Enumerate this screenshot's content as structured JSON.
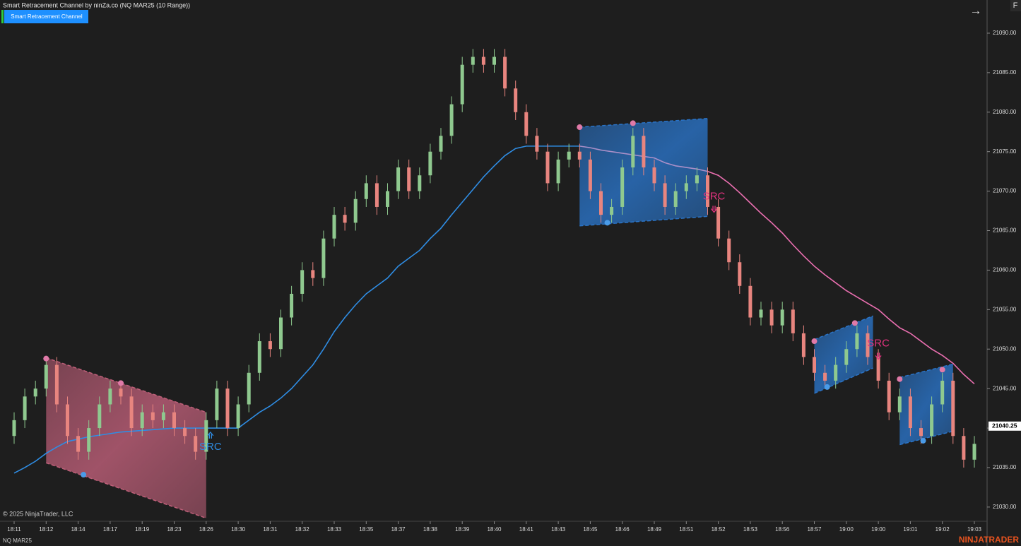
{
  "chart_data": {
    "type": "candlestick",
    "title": "Smart Retracement Channel by ninZa.co (NQ MAR25 (10 Range))",
    "indicator_button": "Smart Retracement Channel",
    "menu_letter": "F",
    "nav_arrow": "→",
    "copyright": "© 2025 NinjaTrader, LLC",
    "instrument": "NQ MAR25",
    "brand": "NINJATRADER",
    "up_color": "#8fc98f",
    "down_color": "#e8857f",
    "ylim": [
      21028.2,
      21094.2
    ],
    "yticks": [
      {
        "value": 21030,
        "label": "21030.00"
      },
      {
        "value": 21035,
        "label": "21035.00"
      },
      {
        "value": 21040,
        "label": "21040.00"
      },
      {
        "value": 21045,
        "label": "21045.00"
      },
      {
        "value": 21050,
        "label": "21050.00"
      },
      {
        "value": 21055,
        "label": "21055.00"
      },
      {
        "value": 21060,
        "label": "21060.00"
      },
      {
        "value": 21065,
        "label": "21065.00"
      },
      {
        "value": 21070,
        "label": "21070.00"
      },
      {
        "value": 21075,
        "label": "21075.00"
      },
      {
        "value": 21080,
        "label": "21080.00"
      },
      {
        "value": 21085,
        "label": "21085.00"
      },
      {
        "value": 21090,
        "label": "21090.00"
      }
    ],
    "last_price": 21040.25,
    "categories": [
      "18:11",
      null,
      null,
      "18:12",
      null,
      null,
      "18:14",
      null,
      null,
      "18:17",
      null,
      null,
      "18:19",
      null,
      null,
      "18:23",
      null,
      null,
      "18:26",
      null,
      null,
      "18:30",
      null,
      null,
      "18:31",
      null,
      null,
      "18:32",
      null,
      null,
      "18:33",
      null,
      null,
      "18:35",
      null,
      null,
      "18:37",
      null,
      null,
      "18:38",
      null,
      null,
      "18:39",
      null,
      null,
      "18:40",
      null,
      null,
      "18:41",
      null,
      null,
      "18:43",
      null,
      null,
      "18:45",
      null,
      null,
      "18:46",
      null,
      null,
      "18:49",
      null,
      null,
      "18:51",
      null,
      null,
      "18:52",
      null,
      null,
      "18:53",
      null,
      null,
      "18:56",
      null,
      null,
      "18:57",
      null,
      null,
      "19:00",
      null,
      null,
      "19:00",
      null,
      null,
      "19:01",
      null,
      null,
      "19:02",
      null,
      null,
      "19:03"
    ],
    "open": [
      21039,
      21041,
      21044,
      21045,
      21048,
      21043,
      21039,
      21037,
      21040,
      21043,
      21045,
      21044,
      21040,
      21042,
      21041,
      21042,
      21040,
      21039,
      21037,
      21041,
      21045,
      21040,
      21043,
      21047,
      21051,
      21050,
      21054,
      21057,
      21060,
      21059,
      21064,
      21067,
      21066,
      21069,
      21071,
      21068,
      21070,
      21073,
      21070,
      21072,
      21075,
      21077,
      21081,
      21086,
      21087,
      21086,
      21087,
      21083,
      21080,
      21077,
      21075,
      21071,
      21074,
      21075,
      21074,
      21070,
      21067,
      21068,
      21073,
      21077,
      21073,
      21071,
      21068,
      21070,
      21071,
      21072,
      21068,
      21064,
      21061,
      21058,
      21054,
      21055,
      21053,
      21055,
      21052,
      21049,
      21047,
      21046,
      21048,
      21050,
      21052,
      21049,
      21046,
      21042,
      21044,
      21040,
      21039,
      21043,
      21046,
      21039,
      21036
    ],
    "high": [
      21042,
      21045,
      21046,
      21049,
      21049,
      21044,
      21040,
      21041,
      21044,
      21046,
      21046,
      21045,
      21043,
      21043,
      21043,
      21043,
      21041,
      21040,
      21042,
      21046,
      21046,
      21044,
      21048,
      21052,
      21052,
      21055,
      21058,
      21061,
      21061,
      21065,
      21068,
      21068,
      21070,
      21072,
      21072,
      21071,
      21074,
      21074,
      21073,
      21076,
      21078,
      21082,
      21087,
      21088,
      21088,
      21088,
      21088,
      21084,
      21081,
      21078,
      21076,
      21075,
      21076,
      21076,
      21075,
      21071,
      21069,
      21074,
      21078,
      21078,
      21074,
      21072,
      21071,
      21072,
      21073,
      21073,
      21069,
      21065,
      21062,
      21059,
      21056,
      21056,
      21056,
      21056,
      21053,
      21050,
      21048,
      21049,
      21051,
      21053,
      21053,
      21050,
      21047,
      21045,
      21045,
      21041,
      21044,
      21047,
      21047,
      21040,
      21039
    ],
    "low": [
      21038,
      21040,
      21043,
      21044,
      21042,
      21038,
      21036,
      21036,
      21039,
      21042,
      21043,
      21039,
      21039,
      21040,
      21040,
      21039,
      21038,
      21036,
      21036,
      21040,
      21039,
      21039,
      21042,
      21046,
      21049,
      21049,
      21053,
      21056,
      21058,
      21058,
      21063,
      21065,
      21065,
      21068,
      21067,
      21067,
      21069,
      21069,
      21069,
      21071,
      21074,
      21076,
      21080,
      21085,
      21085,
      21085,
      21082,
      21079,
      21076,
      21074,
      21070,
      21070,
      21073,
      21073,
      21069,
      21066,
      21066,
      21067,
      21072,
      21072,
      21070,
      21067,
      21067,
      21069,
      21070,
      21067,
      21063,
      21060,
      21057,
      21053,
      21053,
      21052,
      21052,
      21051,
      21048,
      21046,
      21045,
      21045,
      21047,
      21049,
      21048,
      21045,
      21041,
      21041,
      21039,
      21038,
      21038,
      21042,
      21038,
      21035,
      21035
    ],
    "close": [
      21041,
      21044,
      21045,
      21048,
      21043,
      21039,
      21037,
      21040,
      21043,
      21045,
      21044,
      21040,
      21042,
      21041,
      21042,
      21040,
      21039,
      21037,
      21041,
      21045,
      21040,
      21043,
      21047,
      21051,
      21050,
      21054,
      21057,
      21060,
      21059,
      21064,
      21067,
      21066,
      21069,
      21071,
      21068,
      21070,
      21073,
      21070,
      21072,
      21075,
      21077,
      21081,
      21086,
      21087,
      21086,
      21087,
      21083,
      21080,
      21077,
      21075,
      21071,
      21074,
      21075,
      21074,
      21070,
      21067,
      21068,
      21073,
      21077,
      21073,
      21071,
      21068,
      21070,
      21071,
      21072,
      21068,
      21064,
      21061,
      21058,
      21054,
      21055,
      21053,
      21055,
      21052,
      21049,
      21047,
      21046,
      21048,
      21050,
      21052,
      21049,
      21046,
      21042,
      21044,
      21040,
      21039,
      21043,
      21046,
      21039,
      21036,
      21038
    ],
    "series": [
      {
        "color": "#2f8de4",
        "values": [
          21034.3,
          21035.0,
          21035.8,
          21036.8,
          21037.6,
          21038.3,
          21038.6,
          21038.9,
          21039.1,
          21039.3,
          21039.5,
          21039.6,
          21039.7,
          21039.8,
          21039.9,
          21040.0,
          21040.0,
          21040.0,
          21040.0,
          21040.0,
          21040.0,
          21040.0,
          21041.0,
          21042.0,
          21042.8,
          21043.8,
          21045.0,
          21046.5,
          21048.0,
          21050.0,
          21052.2,
          21054.0,
          21055.6,
          21057.0,
          21058.0,
          21059.0,
          21060.5,
          21061.5,
          21062.5,
          21064.0,
          21065.3,
          21067.0,
          21068.6,
          21070.2,
          21071.8,
          21073.2,
          21074.5,
          21075.4,
          21075.7,
          21075.7,
          21075.7,
          21075.7,
          21075.7,
          21075.7,
          null,
          null,
          null,
          null,
          null,
          null,
          null,
          null,
          null,
          null,
          null,
          null,
          null,
          null,
          null,
          null,
          null,
          null,
          null,
          null,
          null,
          null,
          null,
          null,
          null,
          null,
          null,
          null,
          null,
          null,
          null,
          null,
          null,
          null,
          null,
          null,
          null
        ]
      },
      {
        "color": "#a98fc8",
        "values": [
          null,
          null,
          null,
          null,
          null,
          null,
          null,
          null,
          null,
          null,
          null,
          null,
          null,
          null,
          null,
          null,
          null,
          null,
          null,
          null,
          null,
          null,
          null,
          null,
          null,
          null,
          null,
          null,
          null,
          null,
          null,
          null,
          null,
          null,
          null,
          null,
          null,
          null,
          null,
          null,
          null,
          null,
          null,
          null,
          null,
          null,
          null,
          null,
          null,
          null,
          null,
          null,
          null,
          21075.7,
          21075.5,
          21075.2,
          21075.0,
          21074.8,
          21074.6,
          21074.4,
          21074.2,
          21073.6,
          21073.2,
          21073.0,
          21072.8,
          21072.5,
          null,
          null,
          null,
          null,
          null,
          null,
          null,
          null,
          null,
          null,
          null,
          null,
          null,
          null,
          null,
          null,
          null,
          null,
          null,
          null,
          null,
          null,
          null,
          null,
          null
        ]
      },
      {
        "color": "#ea6fb0",
        "values": [
          null,
          null,
          null,
          null,
          null,
          null,
          null,
          null,
          null,
          null,
          null,
          null,
          null,
          null,
          null,
          null,
          null,
          null,
          null,
          null,
          null,
          null,
          null,
          null,
          null,
          null,
          null,
          null,
          null,
          null,
          null,
          null,
          null,
          null,
          null,
          null,
          null,
          null,
          null,
          null,
          null,
          null,
          null,
          null,
          null,
          null,
          null,
          null,
          null,
          null,
          null,
          null,
          null,
          null,
          null,
          null,
          null,
          null,
          null,
          null,
          null,
          null,
          null,
          null,
          null,
          21072.5,
          21072.0,
          21071.0,
          21069.8,
          21068.5,
          21067.2,
          21066.0,
          21064.7,
          21063.2,
          21061.8,
          21060.5,
          21059.4,
          21058.4,
          21057.4,
          21056.6,
          21055.8,
          21055.0,
          21053.8,
          21052.7,
          21052.0,
          21051.0,
          21050.0,
          21049.2,
          21048.2,
          21046.8,
          21045.6
        ]
      }
    ],
    "channels": [
      {
        "start": 3,
        "end": 18,
        "top": [
          21048.9,
          21042.0
        ],
        "bottom": [
          21035.6,
          21028.6
        ],
        "color": "#c0607a"
      },
      {
        "start": 53,
        "end": 65,
        "top": [
          21078.1,
          21079.2
        ],
        "bottom": [
          21065.6,
          21066.8
        ],
        "color": "#2a74c8"
      },
      {
        "start": 75,
        "end": 80.5,
        "top": [
          21051.2,
          21054.2
        ],
        "bottom": [
          21044.4,
          21047.6
        ],
        "color": "#2a74c8"
      },
      {
        "start": 83,
        "end": 88,
        "top": [
          21046.4,
          21048.1
        ],
        "bottom": [
          21037.9,
          21039.6
        ],
        "color": "#2a74c8"
      }
    ],
    "pivots": [
      {
        "x": 3,
        "price": 21048.8,
        "color": "#e07aa8"
      },
      {
        "x": 10,
        "price": 21045.7,
        "color": "#e07aa8"
      },
      {
        "x": 6.5,
        "price": 21034.1,
        "color": "#4a9be8"
      },
      {
        "x": 53,
        "price": 21078.1,
        "color": "#e07aa8"
      },
      {
        "x": 58,
        "price": 21078.6,
        "color": "#e07aa8"
      },
      {
        "x": 55.6,
        "price": 21066.0,
        "color": "#4a9be8"
      },
      {
        "x": 75,
        "price": 21051.0,
        "color": "#e07aa8"
      },
      {
        "x": 78.8,
        "price": 21053.3,
        "color": "#e07aa8"
      },
      {
        "x": 76.2,
        "price": 21045.2,
        "color": "#4a9be8"
      },
      {
        "x": 83,
        "price": 21046.2,
        "color": "#e07aa8"
      },
      {
        "x": 87,
        "price": 21047.4,
        "color": "#e07aa8"
      },
      {
        "x": 85.2,
        "price": 21038.4,
        "color": "#4a9be8"
      }
    ],
    "signals": [
      {
        "label": "SRC",
        "x": 18.4,
        "price": 21037.6,
        "color": "#2f8de4",
        "direction": "up"
      },
      {
        "label": "SRC",
        "x": 65.6,
        "price": 21069.3,
        "color": "#e2337f",
        "direction": "down"
      },
      {
        "label": "SRC",
        "x": 81,
        "price": 21050.7,
        "color": "#e2337f",
        "direction": "down"
      }
    ]
  }
}
